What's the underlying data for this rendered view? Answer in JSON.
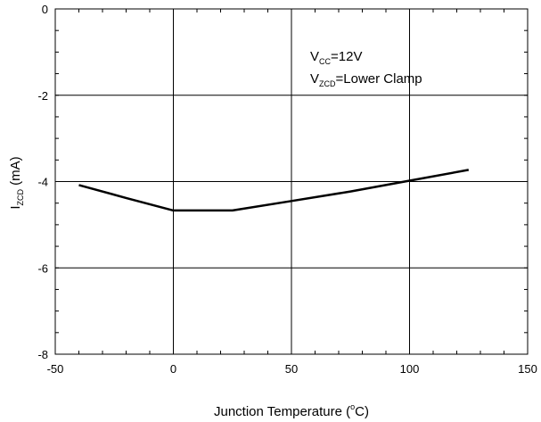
{
  "chart_data": {
    "type": "line",
    "xlabel": "Junction Temperature (°C)",
    "xlabel_parts": {
      "before": "Junction Temperature (",
      "sup": "o",
      "after": "C)"
    },
    "ylabel": "IZCD (mA)",
    "ylabel_parts": {
      "main": "I",
      "sub": "ZCD",
      "after": " (mA)"
    },
    "xlim": [
      -50,
      150
    ],
    "ylim": [
      -8,
      0
    ],
    "xticks": [
      -50,
      0,
      50,
      100,
      150
    ],
    "yticks": [
      0,
      -2,
      -4,
      -6,
      -8
    ],
    "grid": true,
    "annotations": [
      {
        "main": "V",
        "sub": "CC",
        "after": "=12V"
      },
      {
        "main": "V",
        "sub": "ZCD",
        "after": "=Lower Clamp"
      }
    ],
    "series": [
      {
        "x": [
          -40,
          -20,
          0,
          25,
          50,
          75,
          100,
          125
        ],
        "y": [
          -4.08,
          -4.38,
          -4.67,
          -4.67,
          -4.45,
          -4.23,
          -3.98,
          -3.73
        ]
      }
    ]
  }
}
